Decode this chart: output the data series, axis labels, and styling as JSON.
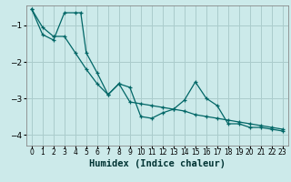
{
  "xlabel": "Humidex (Indice chaleur)",
  "bg_color": "#cceaea",
  "line_color": "#006666",
  "grid_color": "#aacccc",
  "xlim": [
    -0.5,
    23.5
  ],
  "ylim": [
    -4.3,
    -0.45
  ],
  "yticks": [
    -4,
    -3,
    -2,
    -1
  ],
  "xticks": [
    0,
    1,
    2,
    3,
    4,
    5,
    6,
    7,
    8,
    9,
    10,
    11,
    12,
    13,
    14,
    15,
    16,
    17,
    18,
    19,
    20,
    21,
    22,
    23
  ],
  "line1_x": [
    0,
    1,
    2,
    3,
    4,
    4.5,
    5,
    6,
    7,
    8,
    9,
    10,
    11,
    12,
    13,
    14,
    15,
    16,
    17,
    18,
    19,
    20,
    21,
    22,
    23
  ],
  "line1_y": [
    -0.55,
    -1.25,
    -1.4,
    -0.65,
    -0.65,
    -0.65,
    -1.75,
    -2.3,
    -2.9,
    -2.6,
    -2.7,
    -3.5,
    -3.55,
    -3.4,
    -3.3,
    -3.05,
    -2.55,
    -3.0,
    -3.2,
    -3.7,
    -3.7,
    -3.8,
    -3.8,
    -3.85,
    -3.9
  ],
  "line2_x": [
    0,
    1,
    2,
    3,
    4,
    5,
    6,
    7,
    8,
    9,
    10,
    11,
    12,
    13,
    14,
    15,
    16,
    17,
    18,
    19,
    20,
    21,
    22,
    23
  ],
  "line2_y": [
    -0.55,
    -1.05,
    -1.3,
    -1.3,
    -1.75,
    -2.2,
    -2.6,
    -2.9,
    -2.6,
    -3.1,
    -3.15,
    -3.2,
    -3.25,
    -3.3,
    -3.35,
    -3.45,
    -3.5,
    -3.55,
    -3.6,
    -3.65,
    -3.7,
    -3.75,
    -3.8,
    -3.85
  ]
}
